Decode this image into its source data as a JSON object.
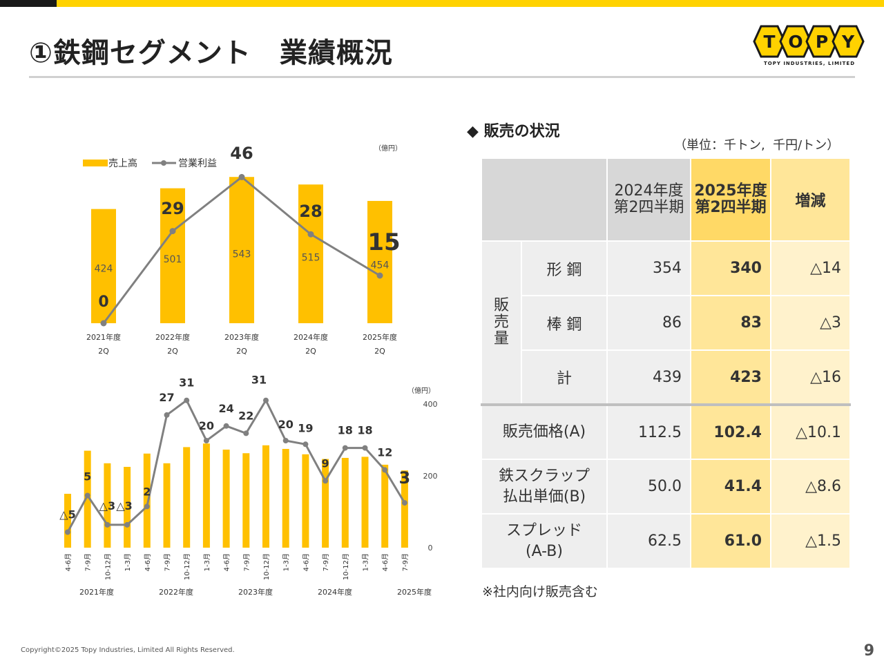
{
  "title": "①鉄鋼セグメント　業績概況",
  "logo": {
    "name": "TOPY",
    "letters": [
      "T",
      "O",
      "P",
      "Y"
    ],
    "sub": "TOPY INDUSTRIES, LIMITED"
  },
  "colors": {
    "bar": "#FFC000",
    "line": "#808080",
    "accent": "#FFD200"
  },
  "chart_data": [
    {
      "type": "bar-line",
      "unit": "（億円）",
      "legend": {
        "bar": "売上高",
        "line": "営業利益",
        "placement": "top-left"
      },
      "categories": [
        [
          "2021年度",
          "2Q"
        ],
        [
          "2022年度",
          "2Q"
        ],
        [
          "2023年度",
          "2Q"
        ],
        [
          "2024年度",
          "2Q"
        ],
        [
          "2025年度",
          "2Q"
        ]
      ],
      "series": [
        {
          "name": "売上高",
          "type": "bar",
          "values": [
            424,
            501,
            543,
            515,
            454
          ],
          "labels": [
            "424",
            "501",
            "543",
            "515",
            "454"
          ]
        },
        {
          "name": "営業利益",
          "type": "line",
          "values": [
            0,
            29,
            46,
            28,
            15
          ],
          "labels": [
            "0",
            "29",
            "46",
            "28",
            "15"
          ]
        }
      ]
    },
    {
      "type": "bar-line",
      "unit": "（億円）",
      "y_ticks": [
        "0",
        "200",
        "400"
      ],
      "y_tick_values": [
        0,
        200,
        400
      ],
      "ylim": [
        0,
        400
      ],
      "categories": [
        "4-6月",
        "7-9月",
        "10-12月",
        "1-3月",
        "4-6月",
        "7-9月",
        "10-12月",
        "1-3月",
        "4-6月",
        "7-9月",
        "10-12月",
        "1-3月",
        "4-6月",
        "7-9月",
        "10-12月",
        "1-3月",
        "4-6月",
        "7-9月"
      ],
      "year_labels": [
        "2021年度",
        "2022年度",
        "2023年度",
        "2024年度",
        "2025年度"
      ],
      "series": [
        {
          "name": "売上高",
          "type": "bar",
          "values": [
            150,
            270,
            235,
            225,
            262,
            235,
            280,
            290,
            273,
            263,
            285,
            275,
            260,
            247,
            250,
            253,
            231,
            215
          ]
        },
        {
          "name": "営業利益",
          "type": "line",
          "values": [
            -5,
            5,
            -3,
            -3,
            2,
            27,
            31,
            20,
            24,
            22,
            31,
            20,
            19,
            9,
            18,
            18,
            12,
            3
          ],
          "labels": [
            "△5",
            "5",
            "△3",
            "△3",
            "2",
            "27",
            "31",
            "20",
            "24",
            "22",
            "31",
            "20",
            "19",
            "9",
            "18",
            "18",
            "12",
            "3"
          ]
        }
      ]
    }
  ],
  "sales": {
    "title": "◆ 販売の状況",
    "unit_note": "（単位：千トン,  千円/トン）",
    "header": {
      "prev": [
        "2024年度",
        "第2四半期"
      ],
      "curr": [
        "2025年度",
        "第2四半期"
      ],
      "diff": "増減"
    },
    "group_label": [
      "販",
      "売",
      "量"
    ],
    "rows": [
      {
        "label": "形 鋼",
        "prev": "354",
        "curr": "340",
        "diff": "△14"
      },
      {
        "label": "棒 鋼",
        "prev": "86",
        "curr": "83",
        "diff": "△3"
      },
      {
        "label": "計",
        "prev": "439",
        "curr": "423",
        "diff": "△16"
      }
    ],
    "rows2": [
      {
        "label": [
          "販売価格(A)"
        ],
        "prev": "112.5",
        "curr": "102.4",
        "diff": "△10.1"
      },
      {
        "label": [
          "鉄スクラップ",
          "払出単価(B)"
        ],
        "prev": "50.0",
        "curr": "41.4",
        "diff": "△8.6"
      },
      {
        "label": [
          "スプレッド",
          "(A-B)"
        ],
        "prev": "62.5",
        "curr": "61.0",
        "diff": "△1.5"
      }
    ],
    "footnote": "※社内向け販売含む"
  },
  "copyright": "Copyright©2025 Topy Industries, Limited All Rights Reserved.",
  "page_number": "9"
}
